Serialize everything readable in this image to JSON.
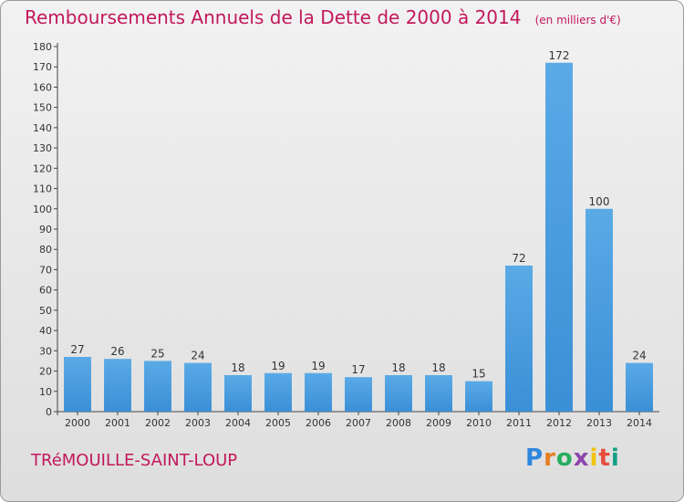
{
  "header": {
    "title": "Remboursements Annuels de la Dette de 2000 à 2014",
    "unit_note": "(en milliers d'€)"
  },
  "footer": {
    "commune": "TRéMOUILLE-SAINT-LOUP",
    "logo": {
      "letters": [
        "P",
        "r",
        "o",
        "x",
        "i",
        "t",
        "i"
      ],
      "colors": [
        "#2e86de",
        "#e67e22",
        "#27ae60",
        "#8e44ad",
        "#f1c40f",
        "#e74c3c",
        "#16a085"
      ]
    }
  },
  "chart_data": {
    "type": "bar",
    "title": "Remboursements Annuels de la Dette de 2000 à 2014",
    "subtitle": "(en milliers d'€)",
    "xlabel": "",
    "ylabel": "",
    "categories": [
      "2000",
      "2001",
      "2002",
      "2003",
      "2004",
      "2005",
      "2006",
      "2007",
      "2008",
      "2009",
      "2010",
      "2011",
      "2012",
      "2013",
      "2014"
    ],
    "values": [
      27,
      26,
      25,
      24,
      18,
      19,
      19,
      17,
      18,
      18,
      15,
      72,
      172,
      100,
      24
    ],
    "ylim": [
      0,
      180
    ],
    "ytick_step": 10,
    "grid": false,
    "bar_color": "#3a8fd6",
    "bar_color_light": "#5aaae6",
    "data_labels": true
  }
}
